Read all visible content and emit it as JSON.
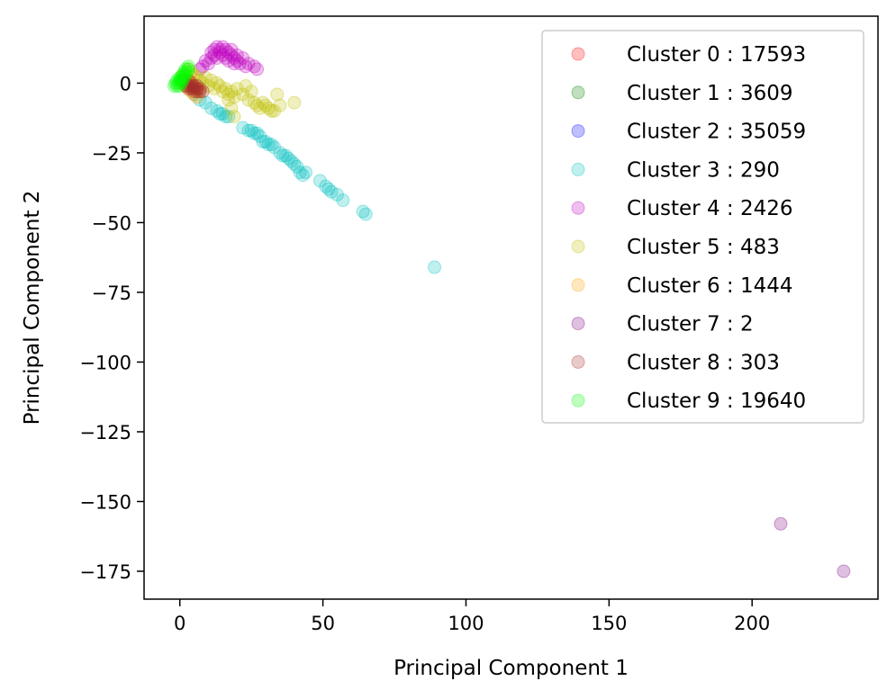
{
  "chart_data": {
    "type": "scatter",
    "title": "",
    "xlabel": "Principal Component 1",
    "ylabel": "Principal Component 2",
    "xlim": [
      -12.5,
      244
    ],
    "ylim": [
      -185,
      24
    ],
    "xticks": [
      0,
      50,
      100,
      150,
      200
    ],
    "yticks": [
      0,
      -25,
      -50,
      -75,
      -100,
      -125,
      -150,
      -175
    ],
    "xtick_labels": [
      "0",
      "50",
      "100",
      "150",
      "200"
    ],
    "ytick_labels": [
      "0",
      "−25",
      "−50",
      "−75",
      "−100",
      "−125",
      "−150",
      "−175"
    ],
    "grid": false,
    "legend_position": "top-right",
    "point_alpha": 0.25,
    "series": [
      {
        "name": "Cluster 0 : 17593",
        "color": "#ff0000",
        "points": []
      },
      {
        "name": "Cluster 1 : 3609",
        "color": "#008000",
        "points": []
      },
      {
        "name": "Cluster 2 : 35059",
        "color": "#0000ff",
        "points": []
      },
      {
        "name": "Cluster 3 : 290",
        "color": "#00bfbf",
        "points": [
          [
            5,
            -4
          ],
          [
            7,
            -6
          ],
          [
            9,
            -7
          ],
          [
            11,
            -9
          ],
          [
            13,
            -10
          ],
          [
            14,
            -11
          ],
          [
            15,
            -11
          ],
          [
            16,
            -12
          ],
          [
            17,
            -12
          ],
          [
            22,
            -16
          ],
          [
            24,
            -17
          ],
          [
            25,
            -17
          ],
          [
            26,
            -18
          ],
          [
            27,
            -18
          ],
          [
            28,
            -19
          ],
          [
            29,
            -21
          ],
          [
            30,
            -21
          ],
          [
            31,
            -22
          ],
          [
            32,
            -22
          ],
          [
            33,
            -23
          ],
          [
            35,
            -25
          ],
          [
            36,
            -26
          ],
          [
            37,
            -26
          ],
          [
            38,
            -27
          ],
          [
            39,
            -28
          ],
          [
            40,
            -29
          ],
          [
            41,
            -30
          ],
          [
            42,
            -32
          ],
          [
            43,
            -33
          ],
          [
            44,
            -32
          ],
          [
            49,
            -35
          ],
          [
            51,
            -37
          ],
          [
            52,
            -38
          ],
          [
            53,
            -39
          ],
          [
            55,
            -40
          ],
          [
            57,
            -42
          ],
          [
            64,
            -46
          ],
          [
            65,
            -47
          ],
          [
            89,
            -66
          ]
        ]
      },
      {
        "name": "Cluster 4 : 2426",
        "color": "#bf00bf",
        "points": [
          [
            7,
            5
          ],
          [
            8,
            6
          ],
          [
            9,
            8
          ],
          [
            10,
            7
          ],
          [
            11,
            9
          ],
          [
            11,
            11
          ],
          [
            12,
            10
          ],
          [
            12,
            12
          ],
          [
            13,
            9
          ],
          [
            13,
            13
          ],
          [
            14,
            12
          ],
          [
            14,
            11
          ],
          [
            15,
            10
          ],
          [
            15,
            13
          ],
          [
            16,
            9
          ],
          [
            16,
            12
          ],
          [
            17,
            11
          ],
          [
            17,
            8
          ],
          [
            18,
            10
          ],
          [
            18,
            12
          ],
          [
            19,
            9
          ],
          [
            19,
            7
          ],
          [
            20,
            10
          ],
          [
            20,
            8
          ],
          [
            21,
            7
          ],
          [
            22,
            9
          ],
          [
            23,
            6
          ],
          [
            24,
            7
          ],
          [
            26,
            6
          ],
          [
            27,
            5
          ]
        ]
      },
      {
        "name": "Cluster 5 : 483",
        "color": "#bfbf00",
        "points": [
          [
            3,
            5
          ],
          [
            4,
            4
          ],
          [
            5,
            3
          ],
          [
            6,
            2
          ],
          [
            7,
            1
          ],
          [
            8,
            0
          ],
          [
            9,
            2
          ],
          [
            10,
            -1
          ],
          [
            11,
            1
          ],
          [
            12,
            -2
          ],
          [
            13,
            0
          ],
          [
            14,
            -1
          ],
          [
            15,
            -3
          ],
          [
            16,
            -2
          ],
          [
            17,
            -4
          ],
          [
            17,
            -6
          ],
          [
            18,
            -3
          ],
          [
            18,
            -9
          ],
          [
            19,
            -5
          ],
          [
            19,
            -12
          ],
          [
            20,
            -2
          ],
          [
            22,
            -4
          ],
          [
            23,
            -1
          ],
          [
            24,
            -6
          ],
          [
            25,
            -3
          ],
          [
            26,
            -7
          ],
          [
            27,
            -8
          ],
          [
            28,
            -9
          ],
          [
            29,
            -7
          ],
          [
            30,
            -8
          ],
          [
            31,
            -9
          ],
          [
            32,
            -10
          ],
          [
            33,
            -10
          ],
          [
            34,
            -4
          ],
          [
            35,
            -8
          ],
          [
            40,
            -7
          ]
        ]
      },
      {
        "name": "Cluster 6 : 1444",
        "color": "#ffa500",
        "points": [
          [
            1,
            3
          ],
          [
            2,
            1
          ],
          [
            2,
            -1
          ],
          [
            3,
            0
          ],
          [
            3,
            -2
          ],
          [
            4,
            1
          ],
          [
            4,
            -3
          ],
          [
            5,
            -1
          ],
          [
            5,
            -4
          ],
          [
            6,
            -2
          ],
          [
            6,
            -5
          ],
          [
            7,
            -3
          ]
        ]
      },
      {
        "name": "Cluster 7 : 2",
        "color": "#800080",
        "points": [
          [
            210,
            -158
          ],
          [
            232,
            -175
          ]
        ]
      },
      {
        "name": "Cluster 8 : 303",
        "color": "#a52a2a",
        "points": [
          [
            1,
            1
          ],
          [
            2,
            0
          ],
          [
            2,
            -1
          ],
          [
            3,
            1
          ],
          [
            3,
            -1
          ],
          [
            3,
            -2
          ],
          [
            4,
            0
          ],
          [
            4,
            -1
          ],
          [
            4,
            -2
          ],
          [
            5,
            -1
          ],
          [
            5,
            -2
          ],
          [
            5,
            -3
          ],
          [
            6,
            -1
          ],
          [
            6,
            -2
          ],
          [
            6,
            -3
          ],
          [
            7,
            -2
          ],
          [
            7,
            -3
          ],
          [
            8,
            -3
          ]
        ]
      },
      {
        "name": "Cluster 9 : 19640",
        "color": "#00ff00",
        "points": [
          [
            -2,
            -1
          ],
          [
            -1.5,
            0
          ],
          [
            -1,
            -1
          ],
          [
            -1,
            1
          ],
          [
            -0.5,
            0
          ],
          [
            0,
            -1
          ],
          [
            0,
            1
          ],
          [
            0,
            2
          ],
          [
            0.5,
            0
          ],
          [
            0.5,
            2
          ],
          [
            1,
            1
          ],
          [
            1,
            3
          ],
          [
            1.5,
            2
          ],
          [
            1.5,
            4
          ],
          [
            2,
            3
          ],
          [
            2,
            5
          ],
          [
            2.5,
            4
          ],
          [
            3,
            5
          ],
          [
            3,
            6
          ]
        ]
      }
    ]
  }
}
